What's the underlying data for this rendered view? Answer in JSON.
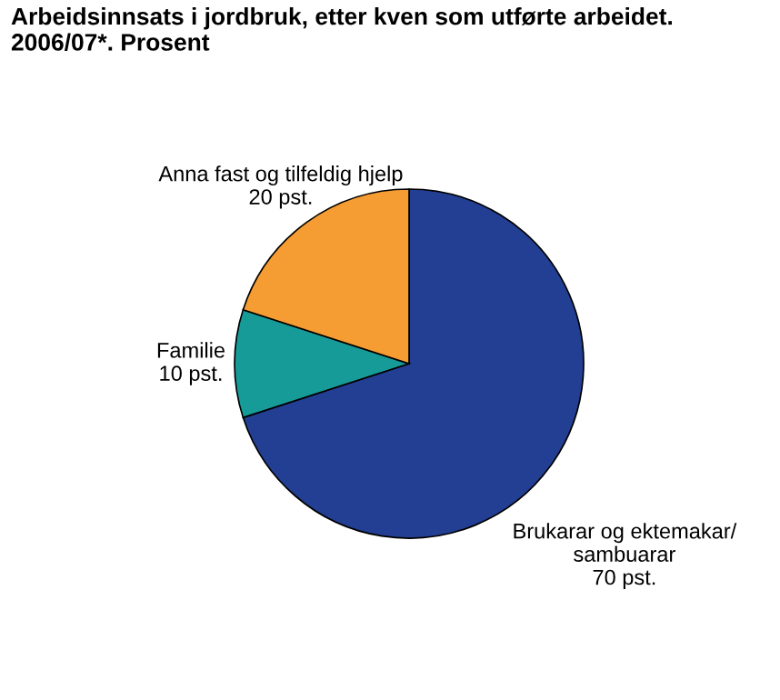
{
  "chart_data": {
    "type": "pie",
    "title": "Arbeidsinnsats i jordbruk, etter kven som utførte arbeidet.\n2006/07*. Prosent",
    "categories": [
      "Brukarar og ektemakar/\nsambuarar",
      "Familie",
      "Anna fast og tilfeldig hjelp"
    ],
    "values": [
      70,
      10,
      20
    ],
    "value_labels": [
      "70 pst.",
      "10 pst.",
      "20 pst."
    ],
    "colors": [
      "#233f93",
      "#169b99",
      "#f59c33"
    ]
  }
}
